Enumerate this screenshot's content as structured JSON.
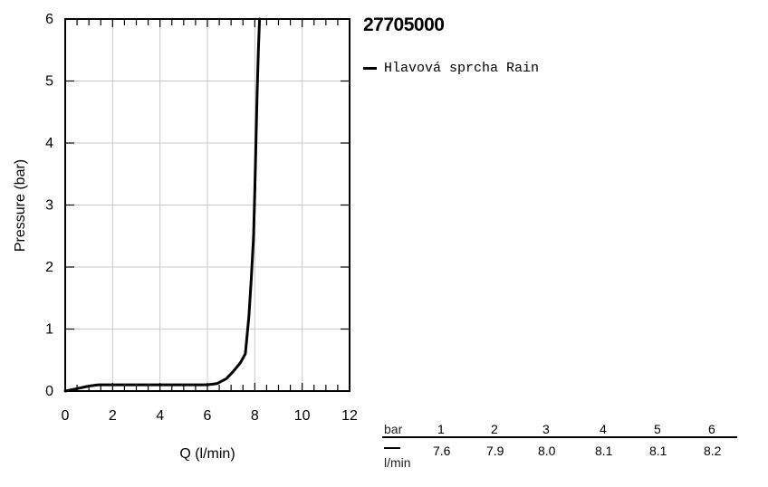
{
  "chart_data": {
    "type": "line",
    "title": "27705000",
    "xlabel": "Q (l/min)",
    "ylabel": "Pressure (bar)",
    "xlim": [
      0,
      12
    ],
    "ylim": [
      0,
      6
    ],
    "x_ticks": [
      "0",
      "2",
      "4",
      "6",
      "8",
      "10",
      "12"
    ],
    "y_ticks": [
      "0",
      "1",
      "2",
      "3",
      "4",
      "5",
      "6"
    ],
    "grid": true,
    "legend_position": "right",
    "series": [
      {
        "name": "Hlavová sprcha Rain",
        "color": "#000000",
        "points": [
          [
            0,
            0
          ],
          [
            0.5,
            0.04
          ],
          [
            1.0,
            0.08
          ],
          [
            1.4,
            0.1
          ],
          [
            2,
            0.1
          ],
          [
            3,
            0.1
          ],
          [
            4,
            0.1
          ],
          [
            5,
            0.1
          ],
          [
            6,
            0.1
          ],
          [
            6.4,
            0.12
          ],
          [
            6.8,
            0.2
          ],
          [
            7.1,
            0.32
          ],
          [
            7.4,
            0.46
          ],
          [
            7.6,
            0.6
          ],
          [
            7.75,
            1.2
          ],
          [
            7.85,
            1.8
          ],
          [
            7.95,
            2.5
          ],
          [
            8.0,
            3.2
          ],
          [
            8.05,
            4.0
          ],
          [
            8.1,
            4.8
          ],
          [
            8.15,
            5.5
          ],
          [
            8.2,
            6.0
          ]
        ]
      }
    ]
  },
  "flow_table": {
    "pressure_unit": "bar",
    "flow_unit": "l/min",
    "pressures": [
      "1",
      "2",
      "3",
      "4",
      "5",
      "6"
    ],
    "flows": [
      "7.6",
      "7.9",
      "8.0",
      "8.1",
      "8.1",
      "8.2"
    ]
  }
}
